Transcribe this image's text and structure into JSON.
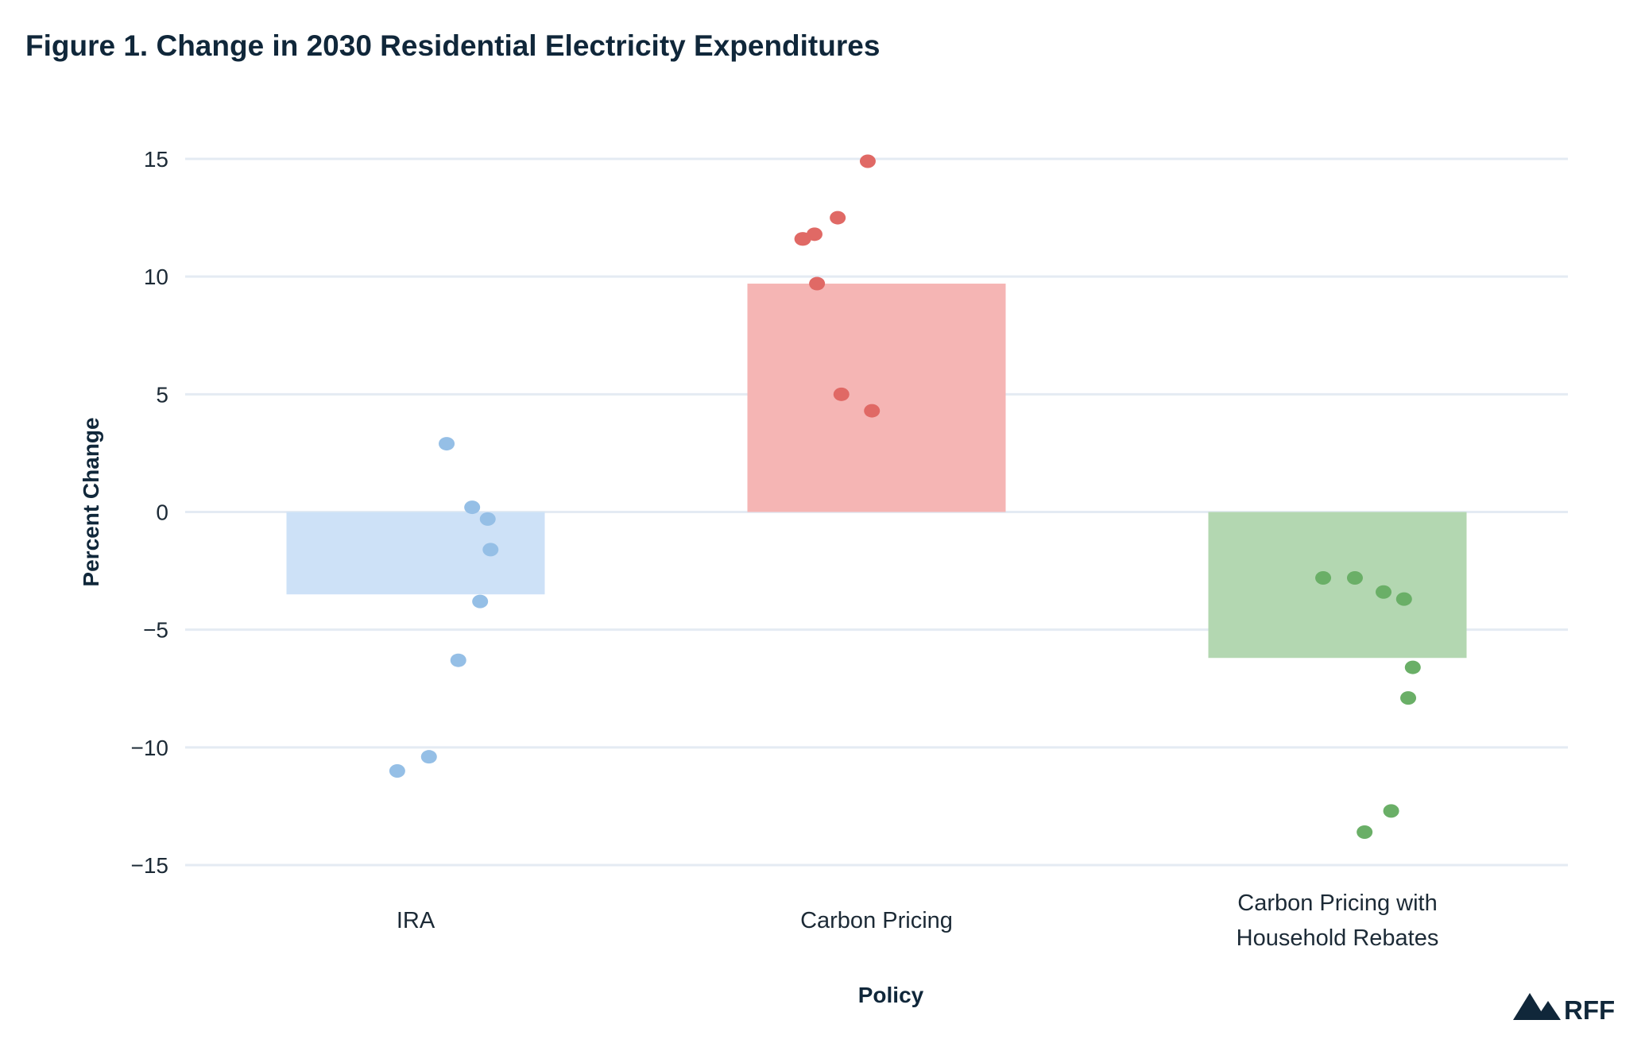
{
  "chart_data": {
    "type": "bar",
    "title": "Figure 1. Change in 2030 Residential Electricity Expenditures",
    "xlabel": "Policy",
    "ylabel": "Percent Change",
    "ylim": [
      -15,
      15
    ],
    "yticks": [
      15,
      10,
      5,
      0,
      -5,
      -10,
      -15
    ],
    "ytick_labels": [
      "15",
      "10",
      "5",
      "0",
      "−5",
      "−10",
      "−15"
    ],
    "grid": true,
    "categories": [
      [
        "IRA"
      ],
      [
        "Carbon Pricing"
      ],
      [
        "Carbon Pricing with",
        "Household Rebates"
      ]
    ],
    "values": [
      -3.5,
      9.7,
      -6.2
    ],
    "bar_colors": [
      "#cde1f7",
      "#f5b5b4",
      "#b3d7b1"
    ],
    "point_colors": [
      "#95bfe6",
      "#e06965",
      "#6aaf67"
    ],
    "points": [
      [
        2.9,
        0.2,
        -0.3,
        -1.6,
        -3.8,
        -6.3,
        -10.4,
        -11.0
      ],
      [
        14.9,
        12.5,
        11.8,
        11.6,
        11.6,
        9.7,
        5.0,
        4.3
      ],
      [
        -2.8,
        -2.8,
        -3.4,
        -3.7,
        -6.6,
        -7.9,
        -12.7,
        -13.6
      ]
    ]
  },
  "logo": {
    "text": "RFF"
  }
}
